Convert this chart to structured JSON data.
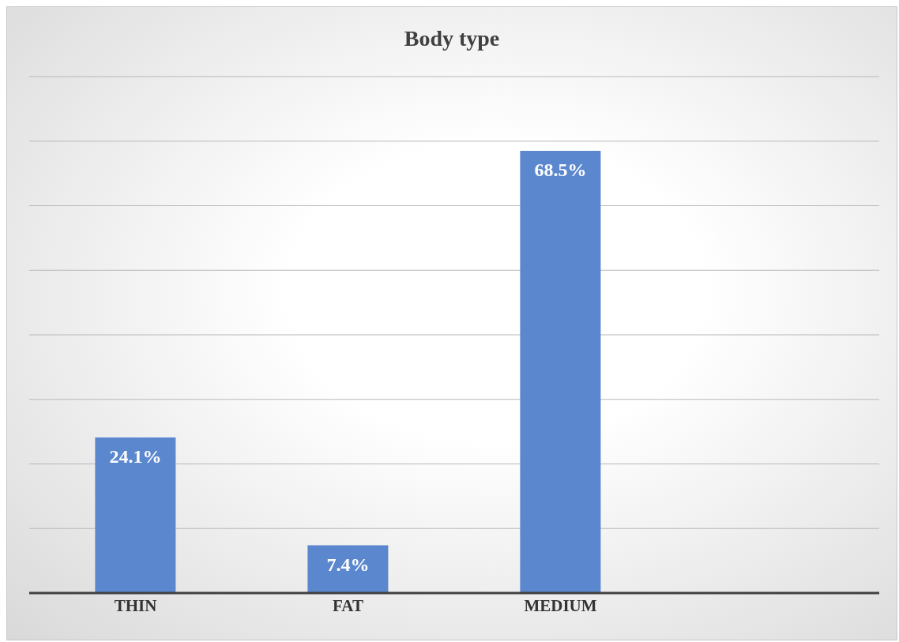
{
  "chart_data": {
    "type": "bar",
    "title": "Body type",
    "categories": [
      "THIN",
      "FAT",
      "MEDIUM",
      null
    ],
    "values": [
      24.1,
      7.4,
      68.5,
      null
    ],
    "value_labels": [
      "24.1%",
      "7.4%",
      "68.5%",
      null
    ],
    "color": "#5b87cf",
    "ylim": [
      0,
      80
    ],
    "yticks": [
      0,
      10,
      20,
      30,
      40,
      50,
      60,
      70,
      80
    ],
    "grid": "y",
    "tick_labels": "x"
  }
}
